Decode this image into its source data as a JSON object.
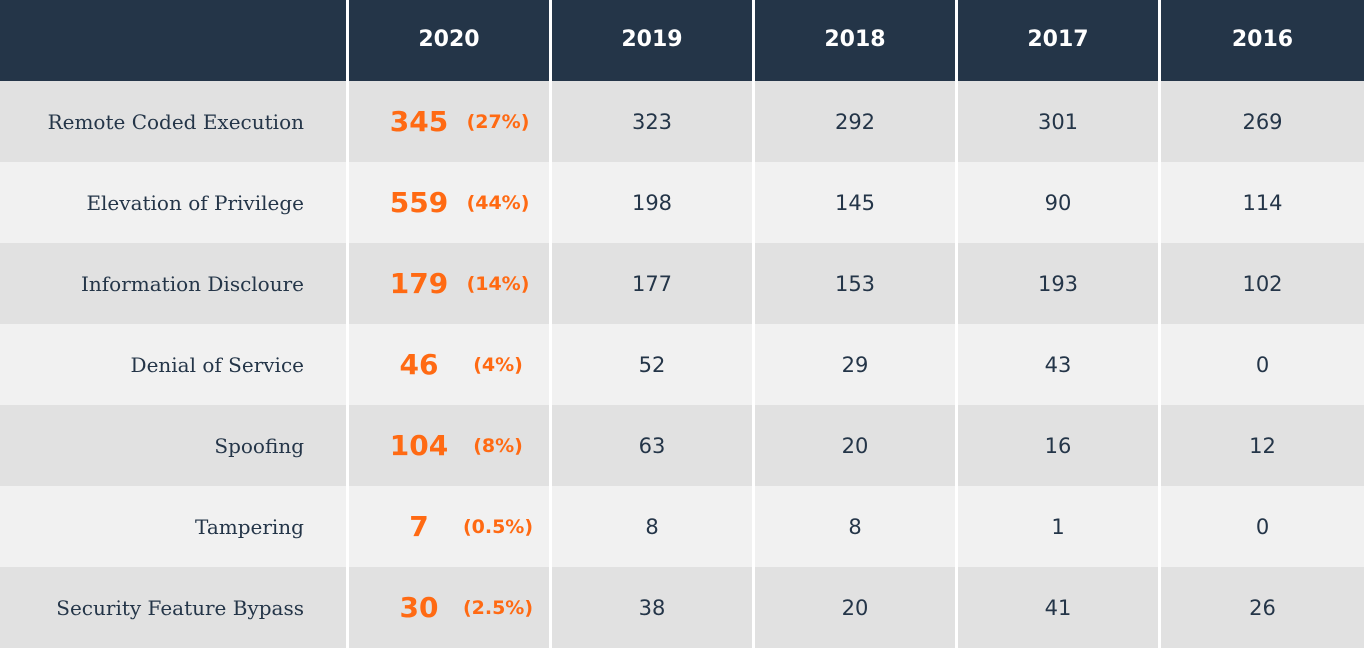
{
  "chart_data": {
    "type": "table",
    "columns": [
      "",
      "2020",
      "2019",
      "2018",
      "2017",
      "2016"
    ],
    "rows": [
      {
        "label": "Remote Coded Execution",
        "v2020": "345",
        "pct2020": "(27%)",
        "values": [
          "323",
          "292",
          "301",
          "269"
        ]
      },
      {
        "label": "Elevation of Privilege",
        "v2020": "559",
        "pct2020": "(44%)",
        "values": [
          "198",
          "145",
          "90",
          "114"
        ]
      },
      {
        "label": "Information Discloure",
        "v2020": "179",
        "pct2020": "(14%)",
        "values": [
          "177",
          "153",
          "193",
          "102"
        ]
      },
      {
        "label": "Denial of Service",
        "v2020": "46",
        "pct2020": "(4%)",
        "values": [
          "52",
          "29",
          "43",
          "0"
        ]
      },
      {
        "label": "Spoofing",
        "v2020": "104",
        "pct2020": "(8%)",
        "values": [
          "63",
          "20",
          "16",
          "12"
        ]
      },
      {
        "label": "Tampering",
        "v2020": "7",
        "pct2020": "(0.5%)",
        "values": [
          "8",
          "8",
          "1",
          "0"
        ]
      },
      {
        "label": "Security Feature Bypass",
        "v2020": "30",
        "pct2020": "(2.5%)",
        "values": [
          "38",
          "20",
          "41",
          "26"
        ]
      }
    ]
  },
  "colors": {
    "header_bg": "#243548",
    "highlight": "#ff6a13",
    "row_odd": "#e1e1e1",
    "row_even": "#f1f1f1"
  }
}
